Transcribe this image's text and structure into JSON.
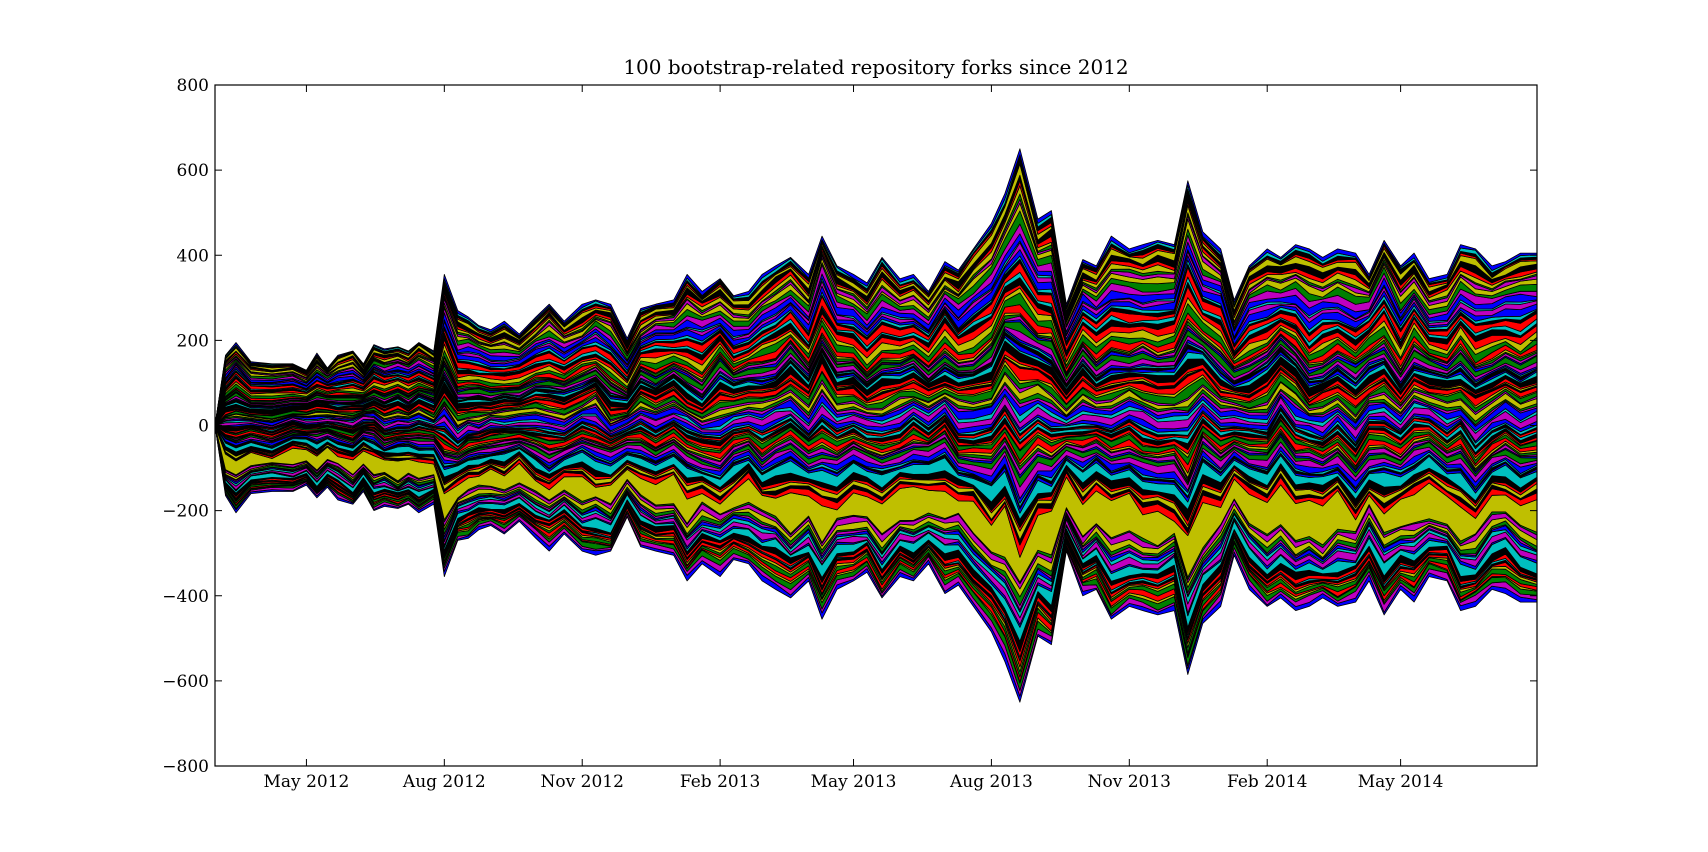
{
  "chart_data": {
    "type": "area",
    "subtype": "streamgraph (symmetric stacked area)",
    "title": "100 bootstrap-related repository forks since 2012",
    "xlabel": "",
    "ylabel": "",
    "x_range": [
      "2012-03-01",
      "2014-07-31"
    ],
    "ylim": [
      -800,
      800
    ],
    "y_ticks": [
      -800,
      -600,
      -400,
      -200,
      0,
      200,
      400,
      600,
      800
    ],
    "y_tick_labels": [
      "−800",
      "−600",
      "−400",
      "−200",
      "0",
      "200",
      "400",
      "600",
      "800"
    ],
    "x_ticks": [
      "2012-05-01",
      "2012-08-01",
      "2012-11-01",
      "2013-02-01",
      "2013-05-01",
      "2013-08-01",
      "2013-11-01",
      "2014-02-01",
      "2014-05-01"
    ],
    "x_tick_labels": [
      "May 2012",
      "Aug 2012",
      "Nov 2012",
      "Feb 2013",
      "May 2013",
      "Aug 2013",
      "Nov 2013",
      "Feb 2014",
      "May 2014"
    ],
    "series_count": 100,
    "series_colors": [
      "#0000ff",
      "#008000",
      "#ff0000",
      "#00bfbf",
      "#bf00bf",
      "#bfbf00",
      "#000000"
    ],
    "grid": false,
    "legend": "none",
    "envelope": {
      "dates": [
        "2012-03-01",
        "2012-03-08",
        "2012-03-15",
        "2012-03-25",
        "2012-04-08",
        "2012-04-22",
        "2012-05-01",
        "2012-05-08",
        "2012-05-15",
        "2012-05-22",
        "2012-06-01",
        "2012-06-08",
        "2012-06-15",
        "2012-06-22",
        "2012-07-01",
        "2012-07-08",
        "2012-07-15",
        "2012-07-25",
        "2012-08-01",
        "2012-08-10",
        "2012-08-17",
        "2012-08-24",
        "2012-09-01",
        "2012-09-10",
        "2012-09-20",
        "2012-10-01",
        "2012-10-10",
        "2012-10-20",
        "2012-11-01",
        "2012-11-10",
        "2012-11-20",
        "2012-12-01",
        "2012-12-10",
        "2012-12-20",
        "2013-01-01",
        "2013-01-10",
        "2013-01-20",
        "2013-02-01",
        "2013-02-10",
        "2013-02-20",
        "2013-03-01",
        "2013-03-10",
        "2013-03-20",
        "2013-04-01",
        "2013-04-10",
        "2013-04-20",
        "2013-05-01",
        "2013-05-10",
        "2013-05-20",
        "2013-06-01",
        "2013-06-10",
        "2013-06-20",
        "2013-07-01",
        "2013-07-10",
        "2013-07-20",
        "2013-08-01",
        "2013-08-10",
        "2013-08-20",
        "2013-09-01",
        "2013-09-10",
        "2013-09-20",
        "2013-10-01",
        "2013-10-10",
        "2013-10-20",
        "2013-11-01",
        "2013-11-10",
        "2013-11-20",
        "2013-12-01",
        "2013-12-10",
        "2013-12-20",
        "2014-01-01",
        "2014-01-10",
        "2014-01-20",
        "2014-02-01",
        "2014-02-10",
        "2014-02-20",
        "2014-03-01",
        "2014-03-10",
        "2014-03-20",
        "2014-04-01",
        "2014-04-10",
        "2014-04-20",
        "2014-05-01",
        "2014-05-10",
        "2014-05-20",
        "2014-06-01",
        "2014-06-10",
        "2014-06-20",
        "2014-07-01",
        "2014-07-10",
        "2014-07-20",
        "2014-07-31"
      ],
      "half_height": [
        0,
        165,
        200,
        155,
        150,
        150,
        135,
        170,
        140,
        170,
        180,
        150,
        195,
        185,
        190,
        180,
        200,
        180,
        355,
        270,
        260,
        240,
        230,
        250,
        220,
        260,
        290,
        250,
        290,
        300,
        290,
        210,
        280,
        290,
        300,
        360,
        320,
        350,
        310,
        320,
        360,
        380,
        400,
        360,
        450,
        380,
        360,
        340,
        400,
        350,
        360,
        320,
        390,
        370,
        420,
        480,
        550,
        650,
        490,
        510,
        290,
        395,
        380,
        450,
        420,
        430,
        440,
        430,
        580,
        460,
        420,
        300,
        380,
        420,
        400,
        430,
        420,
        400,
        420,
        410,
        360,
        440,
        380,
        410,
        350,
        360,
        430,
        420,
        380,
        390,
        410,
        410
      ],
      "center_offset": [
        0,
        0,
        -5,
        -5,
        -5,
        -5,
        -5,
        0,
        -5,
        -5,
        -5,
        -5,
        -5,
        -5,
        -5,
        -5,
        -5,
        -5,
        0,
        0,
        -5,
        -5,
        -5,
        -5,
        -5,
        -5,
        -5,
        -5,
        -5,
        -5,
        -5,
        -5,
        -5,
        -5,
        -5,
        -5,
        -5,
        -5,
        -5,
        -5,
        -5,
        -5,
        -5,
        -5,
        -5,
        -5,
        -5,
        -5,
        -5,
        -5,
        -5,
        -5,
        -5,
        -5,
        -5,
        -5,
        -5,
        0,
        -5,
        -5,
        -5,
        -5,
        -5,
        -5,
        -5,
        -5,
        -5,
        -5,
        -5,
        -5,
        -5,
        -5,
        -5,
        -5,
        -5,
        -5,
        -5,
        -5,
        -5,
        -5,
        -5,
        -5,
        -5,
        -5,
        -5,
        -5,
        -5,
        -5,
        -5,
        -5,
        -5,
        -5
      ]
    }
  }
}
